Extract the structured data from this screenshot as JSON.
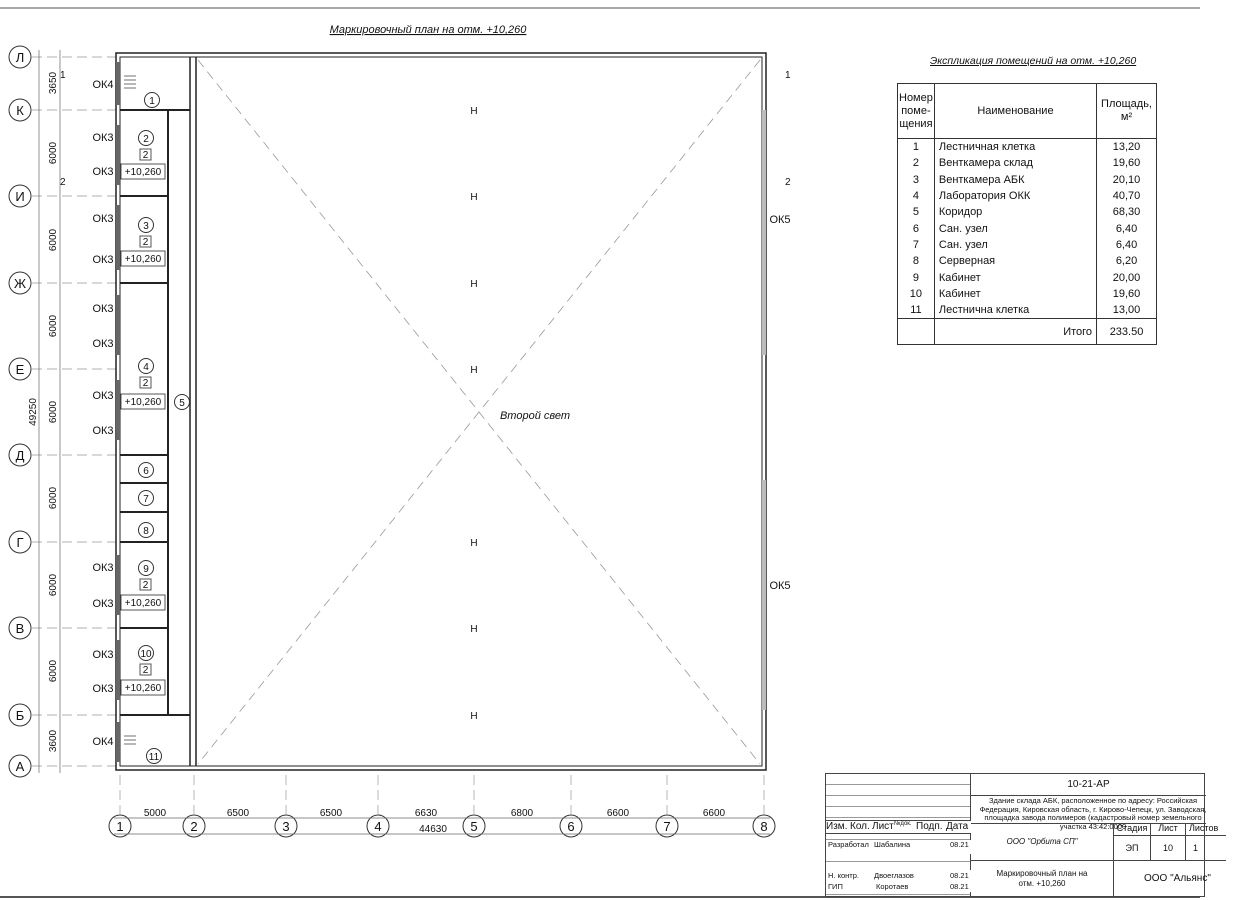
{
  "drawing": {
    "title": "Маркировочный план на отм. +10,260",
    "second_light": "Второй свет",
    "level": "+10,260",
    "corridor_room": "5"
  },
  "axes": {
    "letters": [
      "Л",
      "К",
      "И",
      "Ж",
      "Е",
      "Д",
      "Г",
      "В",
      "Б",
      "А"
    ],
    "numbers": [
      "1",
      "2",
      "3",
      "4",
      "5",
      "6",
      "7",
      "8"
    ]
  },
  "dims": {
    "vertical": [
      "3650",
      "6000",
      "6000",
      "6000",
      "6000",
      "6000",
      "6000",
      "6000",
      "3600"
    ],
    "vertical_total": "49250",
    "horizontal": [
      "5000",
      "6500",
      "6500",
      "6630",
      "6800",
      "6600",
      "6600"
    ],
    "horizontal_total": "44630"
  },
  "sections": {
    "s1": "1",
    "s2": "2"
  },
  "windows": {
    "left": [
      "ОК4",
      "ОК3",
      "ОК3",
      "ОК3",
      "ОК3",
      "ОК3",
      "ОК3",
      "ОК3",
      "ОК3",
      "ОК3",
      "ОК3",
      "ОК3",
      "ОК3",
      "ОК4"
    ],
    "right": [
      "ОК5",
      "ОК5"
    ]
  },
  "rooms": [
    "1",
    "2",
    "3",
    "4",
    "6",
    "7",
    "8",
    "9",
    "10",
    "11"
  ],
  "room_type_tag": "2",
  "explication": {
    "title": "Экспликация помещений на отм. +10,260",
    "headers": [
      "Номер поме-щения",
      "Наименование",
      "Площадь, м²"
    ],
    "rows": [
      {
        "n": "1",
        "name": "Лестничная клетка",
        "area": "13,20"
      },
      {
        "n": "2",
        "name": "Венткамера склад",
        "area": "19,60"
      },
      {
        "n": "3",
        "name": "Венткамера АБК",
        "area": "20,10"
      },
      {
        "n": "4",
        "name": "Лаборатория ОКК",
        "area": "40,70"
      },
      {
        "n": "5",
        "name": "Коридор",
        "area": "68,30"
      },
      {
        "n": "6",
        "name": "Сан. узел",
        "area": "6,40"
      },
      {
        "n": "7",
        "name": "Сан. узел",
        "area": "6,40"
      },
      {
        "n": "8",
        "name": "Серверная",
        "area": "6,20"
      },
      {
        "n": "9",
        "name": "Кабинет",
        "area": "20,00"
      },
      {
        "n": "10",
        "name": "Кабинет",
        "area": "19,60"
      },
      {
        "n": "11",
        "name": "Лестнична клетка",
        "area": "13,00"
      }
    ],
    "total_label": "Итого",
    "total_value": "233.50"
  },
  "title_block": {
    "code": "10-21-АР",
    "address": "Здание склада АБК, расположенное по адресу: Российская Федерация, Кировская область, г. Кирово-Чепецк, ул. Заводская, площадка завода полимеров (кадастровый номер земельного участка 43:42:0000",
    "cols": [
      "Изм.",
      "Кол.",
      "Лист",
      "№док.",
      "Подп.",
      "Дата"
    ],
    "people": [
      {
        "role": "Разработал",
        "name": "Шабалина",
        "date": "08.21"
      },
      {
        "role": "Н. контр.",
        "name": "Двоеглазов",
        "date": "08.21"
      },
      {
        "role": "ГИП",
        "name": "Коротаев",
        "date": "08.21"
      }
    ],
    "company": "ООО \"Орбита СП\"",
    "stage_label": "Стадия",
    "sheet_label": "Лист",
    "sheets_label": "Листов",
    "stage": "ЭП",
    "sheet": "10",
    "sheets": "1",
    "sheet_title": "Маркировочный план на отм. +10,260",
    "org": "ООО \"Альянс\""
  }
}
